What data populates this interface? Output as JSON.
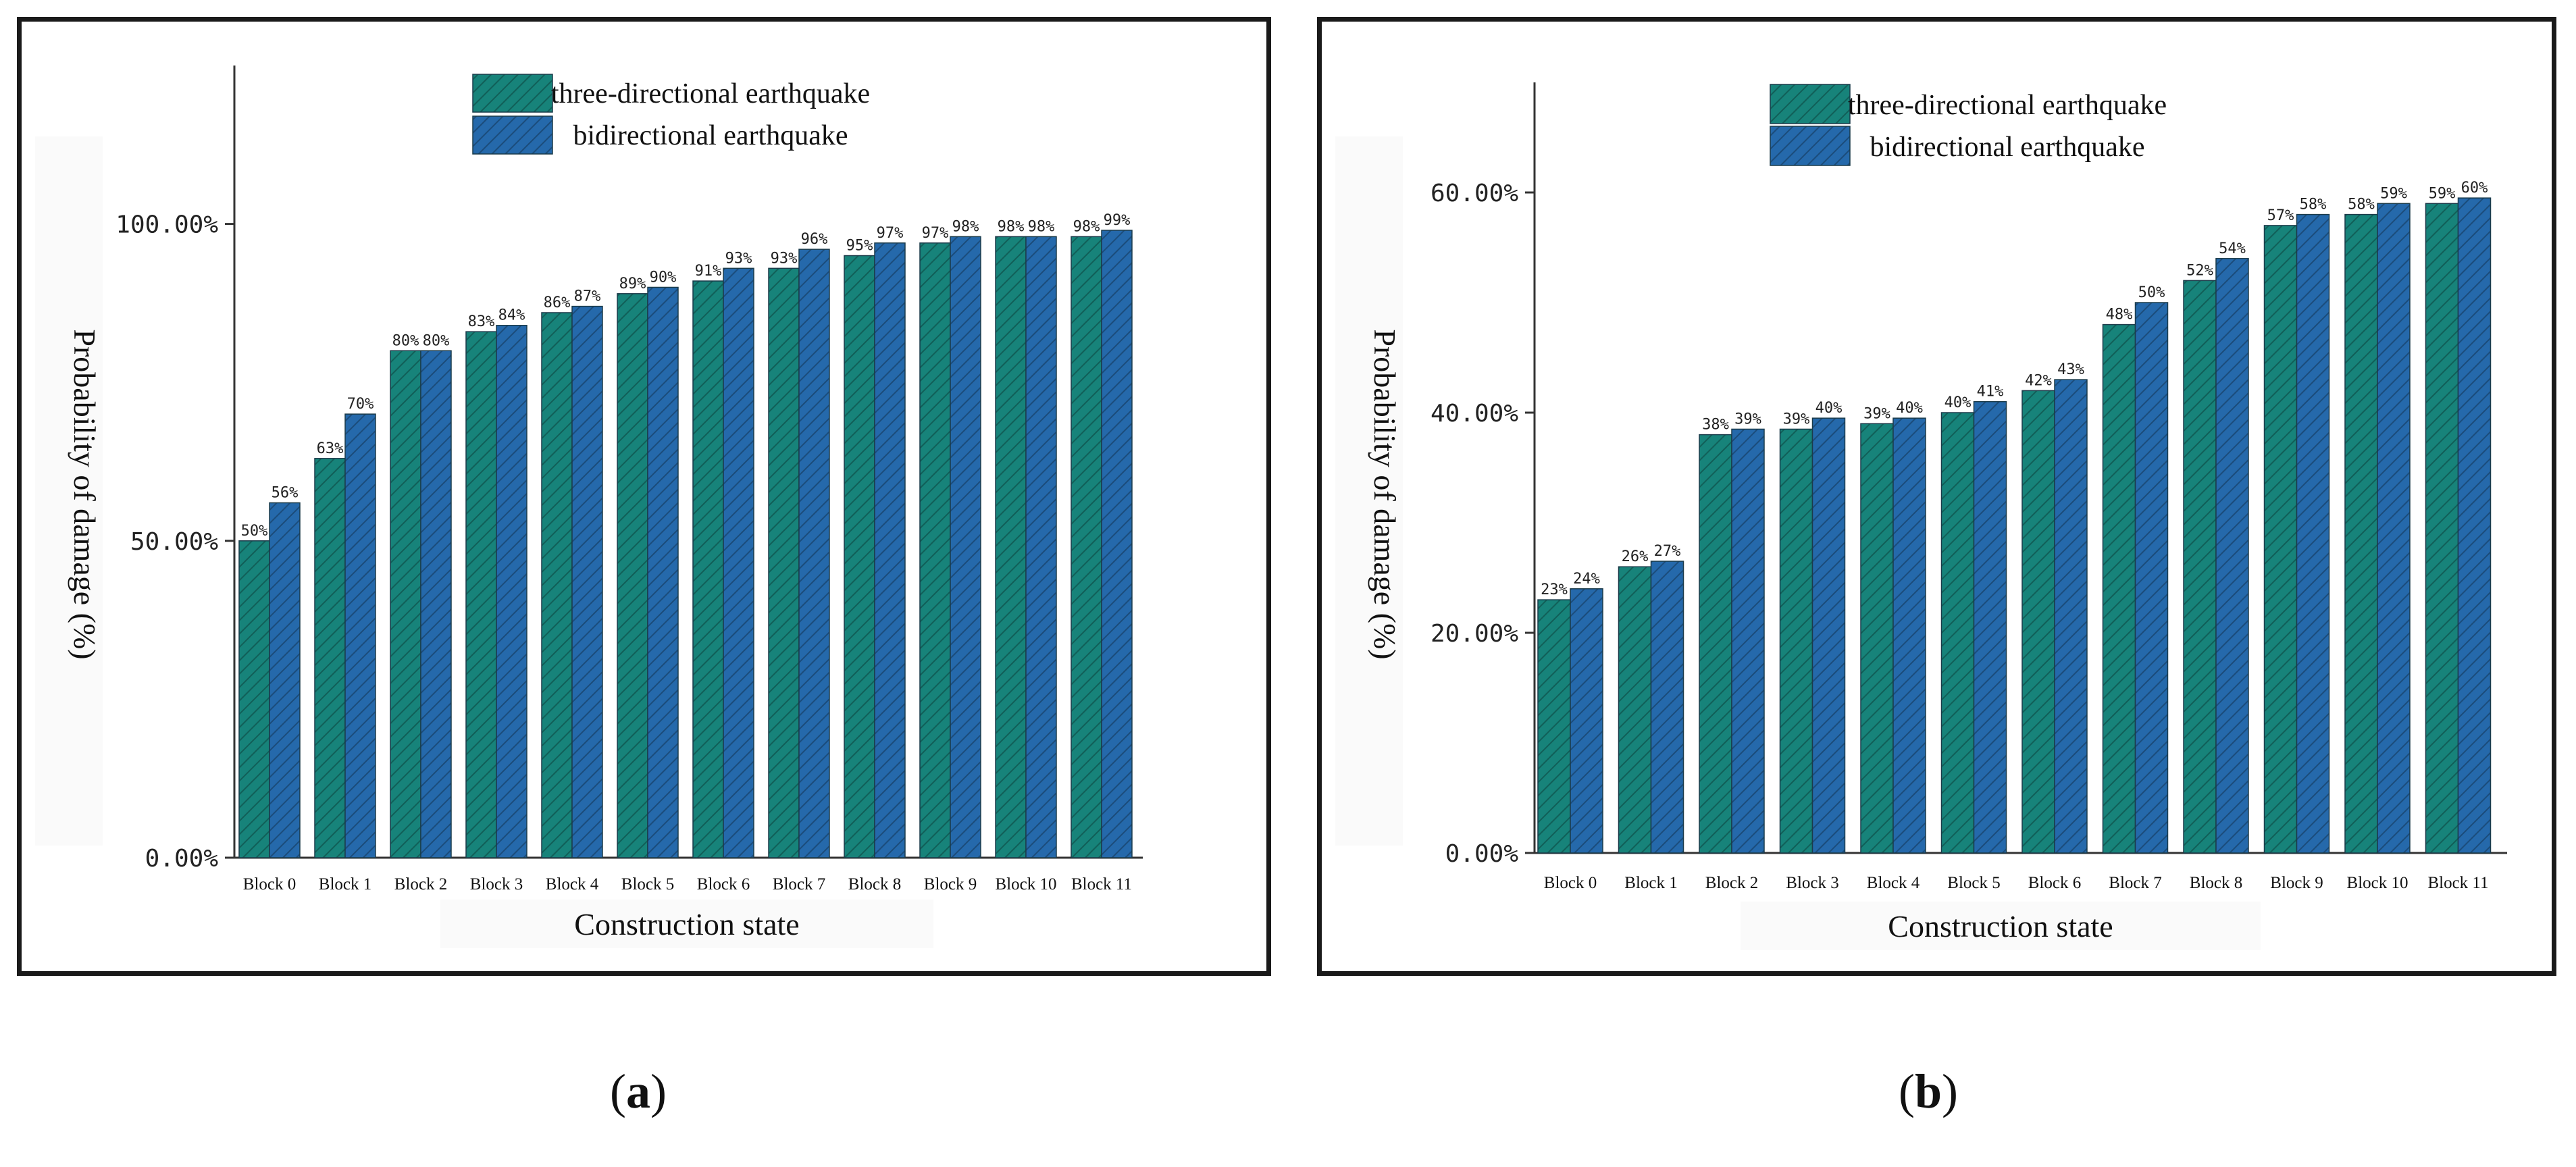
{
  "chart_data": [
    {
      "type": "bar",
      "panel": "a",
      "categories": [
        "Block 0",
        "Block 1",
        "Block 2",
        "Block 3",
        "Block 4",
        "Block 5",
        "Block 6",
        "Block 7",
        "Block 8",
        "Block 9",
        "Block 10",
        "Block 11"
      ],
      "series": [
        {
          "name": "three-directional earthquake",
          "values": [
            50,
            63,
            80,
            83,
            86,
            89,
            91,
            93,
            95,
            97,
            98,
            98
          ],
          "labels": [
            "50%",
            "63%",
            "80%",
            "83%",
            "86%",
            "89%",
            "91%",
            "93%",
            "95%",
            "97%",
            "98%",
            "98%"
          ],
          "color": "#17837a"
        },
        {
          "name": "bidirectional earthquake",
          "values": [
            56,
            70,
            80,
            84,
            87,
            90,
            93,
            96,
            97,
            98,
            98,
            99
          ],
          "labels": [
            "56%",
            "70%",
            "80%",
            "84%",
            "87%",
            "90%",
            "93%",
            "96%",
            "97%",
            "98%",
            "98%",
            "99%"
          ],
          "color": "#2569ab"
        }
      ],
      "yticks": [
        0,
        50,
        100
      ],
      "ytick_labels": [
        "0.00%",
        "50.00%",
        "100.00%"
      ],
      "ylim": [
        0,
        125
      ],
      "xlabel": "Construction state",
      "ylabel": "Probability of damage (%)",
      "legend": "top-right"
    },
    {
      "type": "bar",
      "panel": "b",
      "categories": [
        "Block 0",
        "Block 1",
        "Block 2",
        "Block 3",
        "Block 4",
        "Block 5",
        "Block 6",
        "Block 7",
        "Block 8",
        "Block 9",
        "Block 10",
        "Block 11"
      ],
      "series": [
        {
          "name": "three-directional earthquake",
          "values": [
            23,
            26,
            38,
            38.5,
            39,
            40,
            42,
            48,
            52,
            57,
            58,
            59
          ],
          "labels": [
            "23%",
            "26%",
            "38%",
            "39%",
            "39%",
            "40%",
            "42%",
            "48%",
            "52%",
            "57%",
            "58%",
            "59%"
          ],
          "color": "#17837a"
        },
        {
          "name": "bidirectional earthquake",
          "values": [
            24,
            26.5,
            38.5,
            39.5,
            39.5,
            41,
            43,
            50,
            54,
            58,
            59,
            59.5
          ],
          "labels": [
            "24%",
            "27%",
            "39%",
            "40%",
            "40%",
            "41%",
            "43%",
            "50%",
            "54%",
            "58%",
            "59%",
            "60%"
          ],
          "color": "#2569ab"
        }
      ],
      "yticks": [
        0,
        20,
        40,
        60
      ],
      "ytick_labels": [
        "0.00%",
        "20.00%",
        "40.00%",
        "60.00%"
      ],
      "ylim": [
        0,
        70
      ],
      "xlabel": "Construction state",
      "ylabel": "Probability of damage (%)",
      "legend": "top-right"
    }
  ],
  "captions": {
    "a": "a",
    "b": "b"
  }
}
